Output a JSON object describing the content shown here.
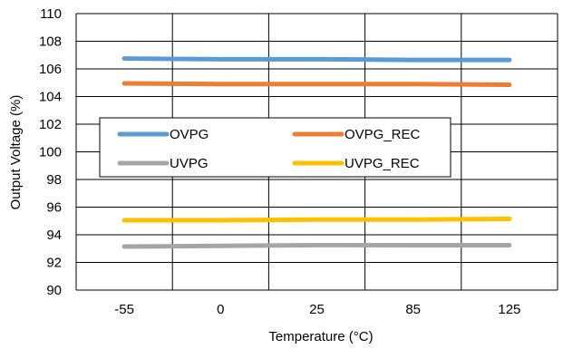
{
  "chart_data": {
    "type": "line",
    "title": "",
    "xlabel": "Temperature (°C)",
    "ylabel": "Output Voltage (%)",
    "categories": [
      "-55",
      "0",
      "25",
      "85",
      "125"
    ],
    "y_ticks": [
      "90",
      "92",
      "94",
      "96",
      "98",
      "100",
      "102",
      "104",
      "106",
      "108",
      "110"
    ],
    "ylim": [
      90,
      110
    ],
    "grid": "vertical and horizontal",
    "legend_position": "center-left",
    "series": [
      {
        "name": "OVPG",
        "color": "#5b9bd5",
        "values": [
          106.75,
          106.7,
          106.7,
          106.65,
          106.65
        ]
      },
      {
        "name": "OVPG_REC",
        "color": "#ed7d31",
        "values": [
          104.95,
          104.9,
          104.9,
          104.9,
          104.85
        ]
      },
      {
        "name": "UVPG",
        "color": "#a5a5a5",
        "values": [
          93.15,
          93.2,
          93.25,
          93.25,
          93.25
        ]
      },
      {
        "name": "UVPG_REC",
        "color": "#ffc000",
        "values": [
          95.05,
          95.05,
          95.1,
          95.1,
          95.15
        ]
      }
    ]
  }
}
